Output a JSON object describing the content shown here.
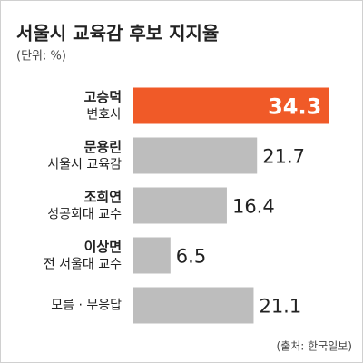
{
  "chart_data": {
    "type": "hbar",
    "title": "서울시 교육감 후보 지지율",
    "subtitle": "(단위: %)",
    "source": "(출처: 한국일보)",
    "categories": [
      [
        "고승덕",
        "변호사"
      ],
      [
        "문용린",
        "서울시 교육감"
      ],
      [
        "조희연",
        "성공회대 교수"
      ],
      [
        "이상면",
        "전 서울대 교수"
      ],
      [
        "모름 · 무응답"
      ]
    ],
    "values": [
      34.3,
      21.7,
      16.4,
      6.5,
      21.1
    ],
    "colors": [
      "#f05a28",
      "#bdbdbd",
      "#bdbdbd",
      "#bdbdbd",
      "#bdbdbd"
    ],
    "xlim": [
      0,
      36
    ]
  }
}
